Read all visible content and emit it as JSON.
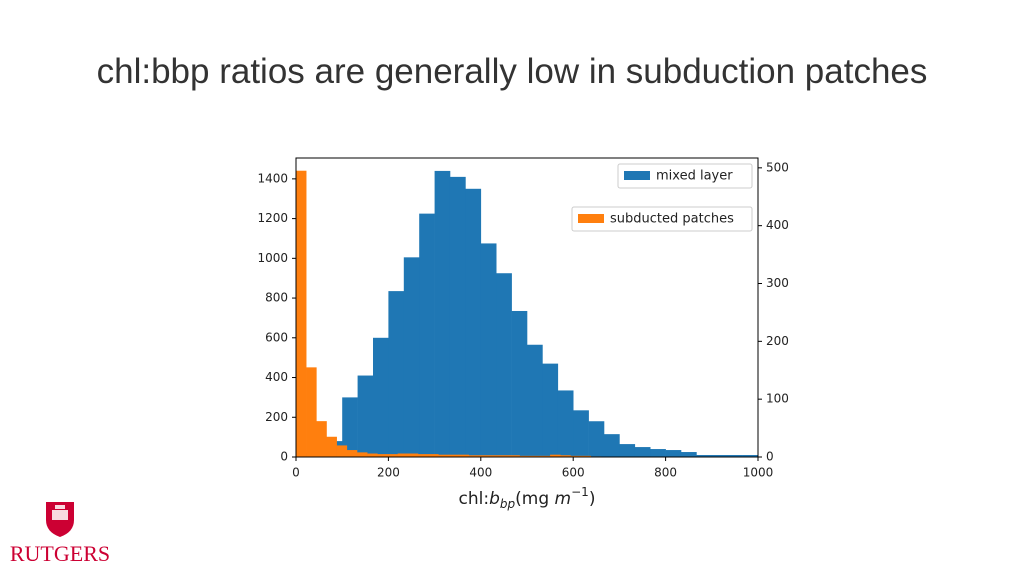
{
  "slide_title": "chl:bbp ratios are generally low in subduction patches",
  "logo_text": "RUTGERS",
  "chart_data": {
    "type": "histogram",
    "xlabel": {
      "lead": "chl:",
      "symbol": "b",
      "subscript": "bp",
      "unit_open": "(mg ",
      "unit_symbol": "m",
      "superscript": "−1",
      "close": ")"
    },
    "xlim": [
      0,
      1000
    ],
    "xticks": [
      0,
      200,
      400,
      600,
      800,
      1000
    ],
    "ylim": [
      0,
      1505
    ],
    "yticks": [
      0,
      200,
      400,
      600,
      800,
      1000,
      1200,
      1400
    ],
    "y2lim": [
      0,
      517
    ],
    "y2ticks": [
      0,
      100,
      200,
      300,
      400,
      500
    ],
    "series": [
      {
        "name": "mixed layer",
        "color": "#1f77b4",
        "axis": "y",
        "legend": "upper right",
        "bins": [
          0,
          33.33,
          66.67,
          100,
          133.33,
          166.67,
          200,
          233.33,
          266.67,
          300,
          333.33,
          366.67,
          400,
          433.33,
          466.67,
          500,
          533.33,
          566.67,
          600,
          633.33,
          666.67,
          700,
          733.33,
          766.67,
          800,
          833.33,
          866.67,
          900,
          933.33,
          966.67,
          1000
        ],
        "values": [
          20,
          50,
          80,
          300,
          410,
          600,
          835,
          1005,
          1225,
          1440,
          1410,
          1350,
          1075,
          925,
          735,
          565,
          470,
          335,
          235,
          180,
          115,
          65,
          50,
          40,
          35,
          25,
          10,
          10,
          10,
          10
        ]
      },
      {
        "name": "subducted patches",
        "color": "#ff7f0e",
        "axis": "y2",
        "legend": "right, below",
        "bins": [
          0,
          22,
          44,
          66,
          88,
          110,
          132,
          154,
          176,
          198,
          220,
          242,
          264,
          286,
          308,
          330,
          352,
          374,
          396,
          418,
          440,
          462,
          484,
          506,
          528,
          550,
          572,
          594,
          616,
          638,
          660
        ],
        "values": [
          495,
          155,
          62,
          35,
          20,
          12,
          8,
          6,
          5,
          5,
          6,
          6,
          5,
          5,
          4,
          4,
          4,
          3,
          3,
          3,
          3,
          3,
          2,
          2,
          2,
          4,
          3,
          2,
          2,
          1
        ]
      }
    ]
  }
}
